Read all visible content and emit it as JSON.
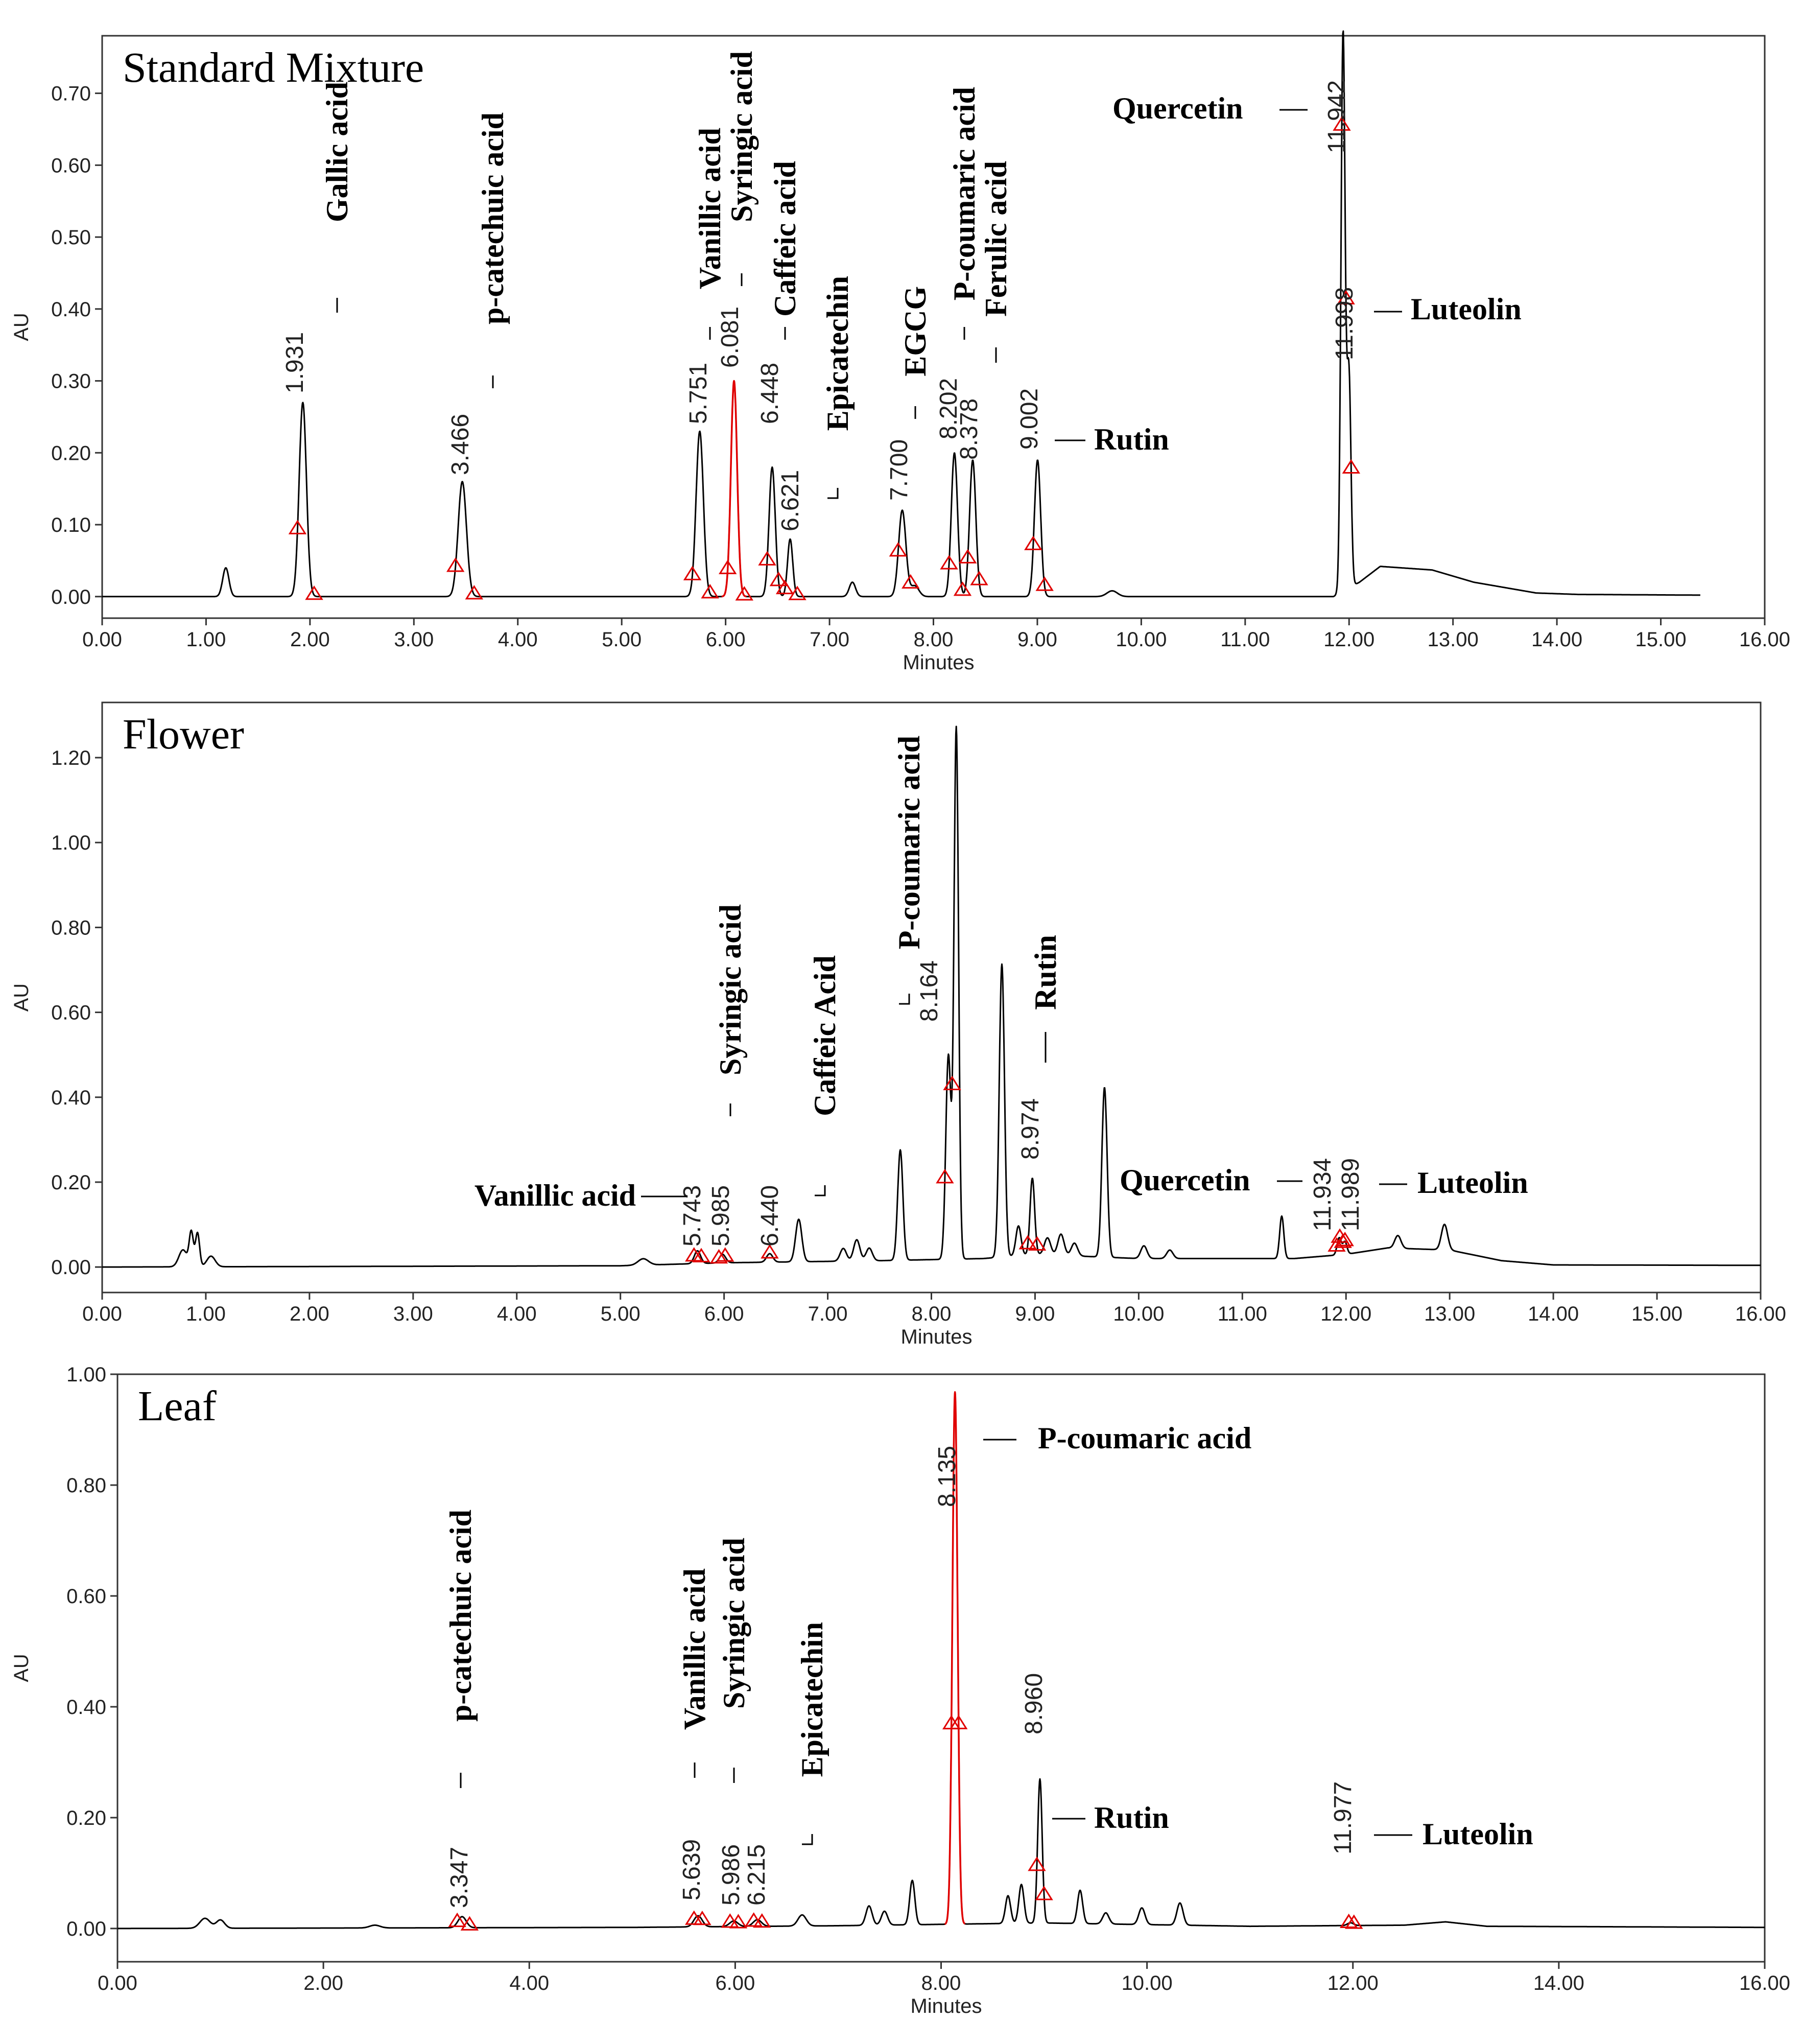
{
  "chart_data": [
    {
      "type": "line",
      "title": "Standard Mixture",
      "xlabel": "Minutes",
      "ylabel": "AU",
      "xlim": [
        0,
        16
      ],
      "ylim": [
        -0.03,
        0.78
      ],
      "xticks": [
        "0.00",
        "1.00",
        "2.00",
        "3.00",
        "4.00",
        "5.00",
        "6.00",
        "7.00",
        "8.00",
        "9.00",
        "10.00",
        "11.00",
        "12.00",
        "13.00",
        "14.00",
        "15.00",
        "16.00"
      ],
      "yticks": [
        "0.00",
        "0.10",
        "0.20",
        "0.30",
        "0.40",
        "0.50",
        "0.60",
        "0.70"
      ],
      "baseline": [
        [
          0,
          0
        ],
        [
          11.85,
          0
        ],
        [
          12.1,
          0.02
        ],
        [
          12.3,
          0.042
        ],
        [
          12.8,
          0.037
        ],
        [
          13.2,
          0.02
        ],
        [
          13.8,
          0.005
        ],
        [
          14.2,
          0.003
        ],
        [
          15.4,
          0.002
        ],
        [
          16,
          0.002
        ]
      ],
      "peaks": [
        {
          "rt": 1.19,
          "height": 0.04,
          "width": 0.03,
          "color": "black"
        },
        {
          "rt": 1.931,
          "height": 0.27,
          "width": 0.035,
          "color": "black",
          "rt_label": "1.931",
          "compound": "Gallic acid"
        },
        {
          "rt": 3.466,
          "height": 0.16,
          "width": 0.04,
          "color": "black",
          "rt_label": "3.466",
          "compound": "p-catechuic acid"
        },
        {
          "rt": 5.751,
          "height": 0.23,
          "width": 0.035,
          "color": "black",
          "rt_label": "5.751",
          "compound": "Vanillic acid"
        },
        {
          "rt": 6.081,
          "height": 0.3,
          "width": 0.03,
          "color": "red",
          "rt_label": "6.081",
          "compound": "Syringic acid"
        },
        {
          "rt": 6.448,
          "height": 0.18,
          "width": 0.03,
          "color": "black",
          "rt_label": "6.448",
          "compound": "Caffeic acid"
        },
        {
          "rt": 6.621,
          "height": 0.08,
          "width": 0.025,
          "color": "black",
          "rt_label": "6.621",
          "compound": "Epicatechin"
        },
        {
          "rt": 7.22,
          "height": 0.02,
          "width": 0.03,
          "color": "black"
        },
        {
          "rt": 7.7,
          "height": 0.12,
          "width": 0.035,
          "color": "black",
          "rt_label": "7.700",
          "compound": "EGCG"
        },
        {
          "rt": 7.82,
          "height": 0.015,
          "width": 0.04,
          "color": "black"
        },
        {
          "rt": 8.202,
          "height": 0.2,
          "width": 0.03,
          "color": "black",
          "rt_label": "8.202",
          "compound": "P-coumaric acid"
        },
        {
          "rt": 8.378,
          "height": 0.19,
          "width": 0.03,
          "color": "black",
          "rt_label": "8.378",
          "compound": "Ferulic acid"
        },
        {
          "rt": 9.002,
          "height": 0.19,
          "width": 0.03,
          "color": "black",
          "rt_label": "9.002",
          "compound": "Rutin"
        },
        {
          "rt": 9.72,
          "height": 0.008,
          "width": 0.05,
          "color": "black"
        },
        {
          "rt": 11.942,
          "height": 0.775,
          "width": 0.02,
          "color": "black",
          "rt_label": "11.942",
          "compound": "Quercetin"
        },
        {
          "rt": 11.998,
          "height": 0.3,
          "width": 0.02,
          "color": "black",
          "rt_label": "11.998",
          "compound": "Luteolin"
        }
      ],
      "markers": [
        1.88,
        2.04,
        3.4,
        3.58,
        5.68,
        5.85,
        6.02,
        6.18,
        6.4,
        6.51,
        6.57,
        6.69,
        7.66,
        7.78,
        8.15,
        8.28,
        8.33,
        8.44,
        8.96,
        9.07,
        11.93,
        11.97,
        12.02
      ],
      "labels": [
        {
          "text": "Gallic acid",
          "rt": 1.931,
          "rt_label": "1.931"
        },
        {
          "text": "p-catechuic acid",
          "rt": 3.466,
          "rt_label": "3.466"
        },
        {
          "text": "Vanillic acid",
          "rt": 5.751,
          "rt_label": "5.751"
        },
        {
          "text": "Syringic acid",
          "rt": 6.081,
          "rt_label": "6.081"
        },
        {
          "text": "Caffeic acid",
          "rt": 6.448,
          "rt_label": "6.448"
        },
        {
          "text": "Epicatechin",
          "rt": 6.621,
          "rt_label": "6.621"
        },
        {
          "text": "EGCG",
          "rt": 7.7,
          "rt_label": "7.700"
        },
        {
          "text": "P-coumaric acid",
          "rt": 8.202,
          "rt_label": "8.202"
        },
        {
          "text": "Ferulic acid",
          "rt": 8.378,
          "rt_label": "8.378"
        },
        {
          "text": "Rutin",
          "rt": 9.002,
          "rt_label": "9.002"
        },
        {
          "text": "Quercetin",
          "rt": 11.942,
          "rt_label": "11.942"
        },
        {
          "text": "Luteolin",
          "rt": 11.998,
          "rt_label": "11.998"
        }
      ]
    },
    {
      "type": "line",
      "title": "Flower",
      "xlabel": "Minutes",
      "ylabel": "AU",
      "xlim": [
        0,
        16
      ],
      "ylim": [
        -0.06,
        1.33
      ],
      "xticks": [
        "0.00",
        "1.00",
        "2.00",
        "3.00",
        "4.00",
        "5.00",
        "6.00",
        "7.00",
        "8.00",
        "9.00",
        "10.00",
        "11.00",
        "12.00",
        "13.00",
        "14.00",
        "15.00",
        "16.00"
      ],
      "yticks": [
        "0.00",
        "0.20",
        "0.40",
        "0.60",
        "0.80",
        "1.00",
        "1.20"
      ],
      "baseline": [
        [
          0,
          0
        ],
        [
          5.0,
          0.003
        ],
        [
          6.0,
          0.01
        ],
        [
          7.5,
          0.015
        ],
        [
          8.5,
          0.02
        ],
        [
          9.0,
          0.03
        ],
        [
          10.0,
          0.02
        ],
        [
          11.5,
          0.02
        ],
        [
          12.0,
          0.03
        ],
        [
          12.4,
          0.045
        ],
        [
          13.0,
          0.04
        ],
        [
          13.5,
          0.015
        ],
        [
          14.0,
          0.005
        ],
        [
          16,
          0.004
        ]
      ],
      "peaks": [
        {
          "rt": 0.78,
          "height": 0.04,
          "width": 0.04,
          "color": "black"
        },
        {
          "rt": 0.86,
          "height": 0.08,
          "width": 0.02,
          "color": "black"
        },
        {
          "rt": 0.92,
          "height": 0.08,
          "width": 0.02,
          "color": "black"
        },
        {
          "rt": 1.05,
          "height": 0.025,
          "width": 0.04,
          "color": "black"
        },
        {
          "rt": 5.22,
          "height": 0.015,
          "width": 0.05,
          "color": "black"
        },
        {
          "rt": 5.743,
          "height": 0.03,
          "width": 0.03,
          "color": "black",
          "rt_label": "5.743",
          "compound": "Vanillic acid"
        },
        {
          "rt": 5.985,
          "height": 0.02,
          "width": 0.03,
          "color": "black",
          "rt_label": "5.985",
          "compound": "Syringic acid"
        },
        {
          "rt": 6.44,
          "height": 0.02,
          "width": 0.03,
          "color": "black",
          "rt_label": "6.440",
          "compound": "Caffeic Acid"
        },
        {
          "rt": 6.72,
          "height": 0.1,
          "width": 0.03,
          "color": "black"
        },
        {
          "rt": 7.15,
          "height": 0.03,
          "width": 0.03,
          "color": "black"
        },
        {
          "rt": 7.28,
          "height": 0.05,
          "width": 0.03,
          "color": "black"
        },
        {
          "rt": 7.4,
          "height": 0.03,
          "width": 0.03,
          "color": "black"
        },
        {
          "rt": 7.7,
          "height": 0.26,
          "width": 0.025,
          "color": "black"
        },
        {
          "rt": 8.164,
          "height": 0.48,
          "width": 0.025,
          "color": "black",
          "rt_label": "8.164",
          "compound": "P-coumaric acid"
        },
        {
          "rt": 8.24,
          "height": 1.25,
          "width": 0.022,
          "color": "black"
        },
        {
          "rt": 8.68,
          "height": 0.69,
          "width": 0.025,
          "color": "black"
        },
        {
          "rt": 8.84,
          "height": 0.07,
          "width": 0.025,
          "color": "black"
        },
        {
          "rt": 8.974,
          "height": 0.18,
          "width": 0.022,
          "color": "black",
          "rt_label": "8.974",
          "compound": "Rutin"
        },
        {
          "rt": 9.12,
          "height": 0.04,
          "width": 0.03,
          "color": "black"
        },
        {
          "rt": 9.25,
          "height": 0.05,
          "width": 0.03,
          "color": "black"
        },
        {
          "rt": 9.38,
          "height": 0.03,
          "width": 0.03,
          "color": "black"
        },
        {
          "rt": 9.67,
          "height": 0.4,
          "width": 0.025,
          "color": "black"
        },
        {
          "rt": 10.05,
          "height": 0.03,
          "width": 0.03,
          "color": "black"
        },
        {
          "rt": 10.3,
          "height": 0.02,
          "width": 0.03,
          "color": "black"
        },
        {
          "rt": 11.38,
          "height": 0.1,
          "width": 0.02,
          "color": "black"
        },
        {
          "rt": 11.934,
          "height": 0.04,
          "width": 0.02,
          "color": "black",
          "rt_label": "11.934",
          "compound": "Quercetin"
        },
        {
          "rt": 11.989,
          "height": 0.03,
          "width": 0.02,
          "color": "black",
          "rt_label": "11.989",
          "compound": "Luteolin"
        },
        {
          "rt": 12.5,
          "height": 0.03,
          "width": 0.03,
          "color": "black"
        },
        {
          "rt": 12.95,
          "height": 0.06,
          "width": 0.03,
          "color": "black"
        }
      ],
      "markers": [
        5.71,
        5.78,
        5.95,
        6.01,
        6.44,
        8.13,
        8.2,
        8.93,
        9.02,
        11.91,
        11.94,
        11.97,
        11.99
      ],
      "labels": [
        {
          "text": "Vanillic acid",
          "rt": 5.743,
          "rt_label": "5.743"
        },
        {
          "text": "Syringic acid",
          "rt": 5.985,
          "rt_label": "5.985"
        },
        {
          "text": "Caffeic Acid",
          "rt": 6.44,
          "rt_label": "6.440"
        },
        {
          "text": "P-coumaric acid",
          "rt": 8.164,
          "rt_label": "8.164"
        },
        {
          "text": "Rutin",
          "rt": 8.974,
          "rt_label": "8.974"
        },
        {
          "text": "Quercetin",
          "rt": 11.934,
          "rt_label": "11.934"
        },
        {
          "text": "Luteolin",
          "rt": 11.989,
          "rt_label": "11.989"
        }
      ]
    },
    {
      "type": "line",
      "title": "Leaf",
      "xlabel": "Minutes",
      "ylabel": "AU",
      "xlim": [
        0,
        16
      ],
      "ylim": [
        -0.06,
        1.0
      ],
      "xticks": [
        "0.00",
        "2.00",
        "4.00",
        "6.00",
        "8.00",
        "10.00",
        "12.00",
        "14.00",
        "16.00"
      ],
      "yticks": [
        "0.00",
        "0.20",
        "0.40",
        "0.60",
        "0.80",
        "1.00"
      ],
      "baseline": [
        [
          0,
          0
        ],
        [
          5,
          0.002
        ],
        [
          7,
          0.005
        ],
        [
          9,
          0.01
        ],
        [
          11,
          0.004
        ],
        [
          12.5,
          0.006
        ],
        [
          12.9,
          0.012
        ],
        [
          13.3,
          0.004
        ],
        [
          16,
          0.002
        ]
      ],
      "peaks": [
        {
          "rt": 0.85,
          "height": 0.018,
          "width": 0.05,
          "color": "black"
        },
        {
          "rt": 1.0,
          "height": 0.015,
          "width": 0.04,
          "color": "black"
        },
        {
          "rt": 2.5,
          "height": 0.005,
          "width": 0.05,
          "color": "black"
        },
        {
          "rt": 3.347,
          "height": 0.02,
          "width": 0.04,
          "color": "black",
          "rt_label": "3.347",
          "compound": "p-catechuic acid"
        },
        {
          "rt": 5.639,
          "height": 0.02,
          "width": 0.04,
          "color": "black",
          "rt_label": "5.639",
          "compound": "Vanillic acid"
        },
        {
          "rt": 5.986,
          "height": 0.01,
          "width": 0.04,
          "color": "black",
          "rt_label": "5.986",
          "compound": "Syringic acid"
        },
        {
          "rt": 6.215,
          "height": 0.012,
          "width": 0.04,
          "color": "black",
          "rt_label": "6.215",
          "compound": "Epicatechin"
        },
        {
          "rt": 6.65,
          "height": 0.02,
          "width": 0.04,
          "color": "black"
        },
        {
          "rt": 7.3,
          "height": 0.035,
          "width": 0.03,
          "color": "black"
        },
        {
          "rt": 7.45,
          "height": 0.025,
          "width": 0.03,
          "color": "black"
        },
        {
          "rt": 7.72,
          "height": 0.08,
          "width": 0.025,
          "color": "black"
        },
        {
          "rt": 8.135,
          "height": 0.96,
          "width": 0.025,
          "color": "red",
          "rt_label": "8.135",
          "compound": "P-coumaric acid"
        },
        {
          "rt": 8.65,
          "height": 0.05,
          "width": 0.025,
          "color": "black"
        },
        {
          "rt": 8.78,
          "height": 0.07,
          "width": 0.025,
          "color": "black"
        },
        {
          "rt": 8.96,
          "height": 0.26,
          "width": 0.022,
          "color": "black",
          "rt_label": "8.960",
          "compound": "Rutin"
        },
        {
          "rt": 9.35,
          "height": 0.06,
          "width": 0.025,
          "color": "black"
        },
        {
          "rt": 9.6,
          "height": 0.02,
          "width": 0.03,
          "color": "black"
        },
        {
          "rt": 9.95,
          "height": 0.03,
          "width": 0.03,
          "color": "black"
        },
        {
          "rt": 10.32,
          "height": 0.04,
          "width": 0.03,
          "color": "black"
        },
        {
          "rt": 11.977,
          "height": 0.005,
          "width": 0.03,
          "color": "black",
          "rt_label": "11.977",
          "compound": "Luteolin"
        }
      ],
      "markers": [
        3.3,
        3.42,
        5.6,
        5.68,
        5.95,
        6.03,
        6.18,
        6.26,
        8.1,
        8.17,
        8.93,
        9.0,
        11.96,
        12.01
      ],
      "labels": [
        {
          "text": "p-catechuic acid",
          "rt": 3.347,
          "rt_label": "3.347"
        },
        {
          "text": "Vanillic acid",
          "rt": 5.639,
          "rt_label": "5.639"
        },
        {
          "text": "Syringic acid",
          "rt": 5.986,
          "rt_label": "5.986"
        },
        {
          "text": "Epicatechin",
          "rt": 6.215,
          "rt_label": "6.215"
        },
        {
          "text": "P-coumaric acid",
          "rt": 8.135,
          "rt_label": "8.135"
        },
        {
          "text": "Rutin",
          "rt": 8.96,
          "rt_label": "8.960"
        },
        {
          "text": "Luteolin",
          "rt": 11.977,
          "rt_label": "11.977"
        }
      ]
    }
  ]
}
